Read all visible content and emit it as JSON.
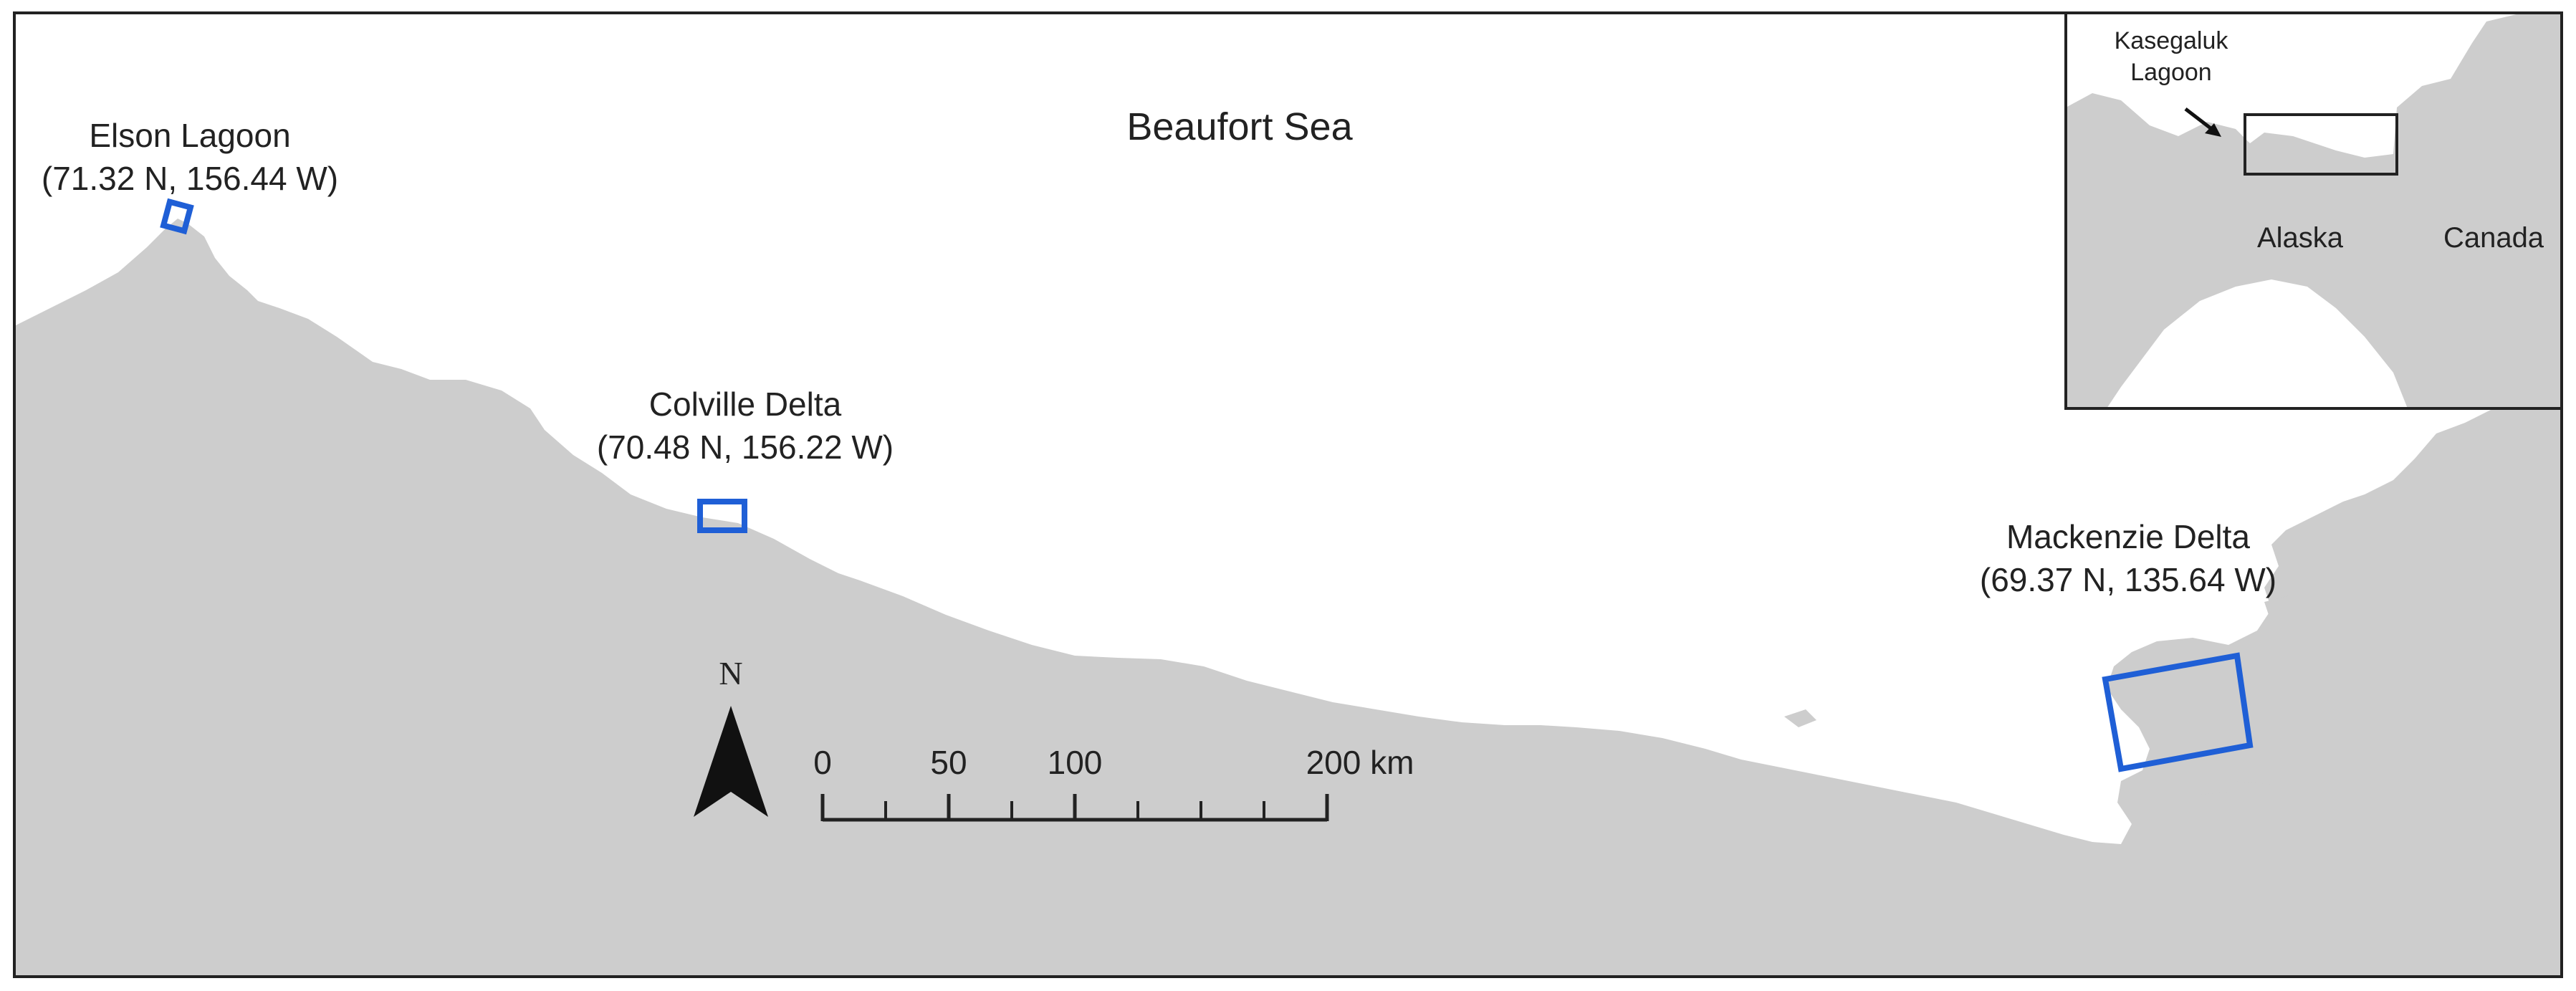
{
  "map": {
    "sea_label": "Beaufort Sea",
    "sites": [
      {
        "name": "Elson Lagoon",
        "coords": "(71.32 N, 156.44 W)"
      },
      {
        "name": "Colville Delta",
        "coords": "(70.48 N, 156.22 W)"
      },
      {
        "name": "Mackenzie Delta",
        "coords": "(69.37 N, 135.64 W)"
      }
    ],
    "north_label": "N",
    "scale_bar": {
      "ticks": [
        "0",
        "50",
        "100",
        "200 km"
      ]
    },
    "inset": {
      "lagoon_label_line1": "Kasegaluk",
      "lagoon_label_line2": "Lagoon",
      "region_labels": [
        "Alaska",
        "Canada"
      ]
    },
    "colors": {
      "land": "#cdcdcd",
      "water": "#ffffff",
      "site_box": "#1f5fd6",
      "frame": "#222222"
    }
  }
}
